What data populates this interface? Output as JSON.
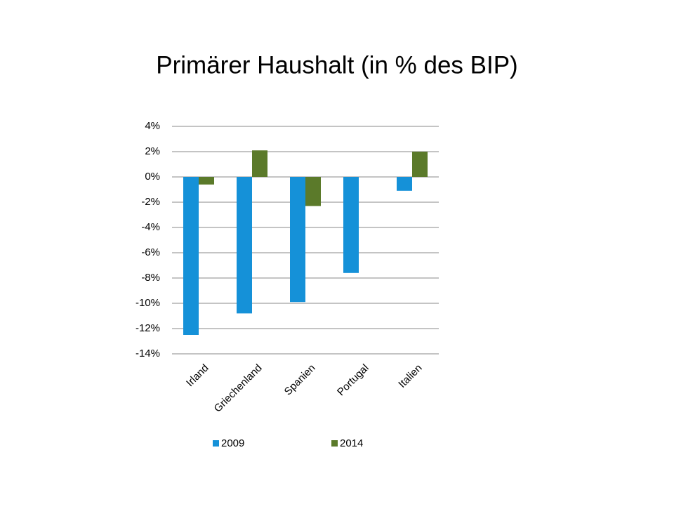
{
  "chart_data": {
    "type": "bar",
    "title": "Primärer Haushalt (in % des BIP)",
    "categories": [
      "Irland",
      "Griechenland",
      "Spanien",
      "Portugal",
      "Italien"
    ],
    "series": [
      {
        "name": "2009",
        "color": "#1591d8",
        "values": [
          -12.5,
          -10.8,
          -9.9,
          -7.6,
          -1.1
        ]
      },
      {
        "name": "2014",
        "color": "#5b7a2a",
        "values": [
          -0.6,
          2.1,
          -2.3,
          null,
          2.0
        ]
      }
    ],
    "ylim": [
      -14,
      4
    ],
    "yticks": [
      {
        "value": 4,
        "label": "4%"
      },
      {
        "value": 2,
        "label": "2%"
      },
      {
        "value": 0,
        "label": "0%"
      },
      {
        "value": -2,
        "label": "-2%"
      },
      {
        "value": -4,
        "label": "-4%"
      },
      {
        "value": -6,
        "label": "-6%"
      },
      {
        "value": -8,
        "label": "-8%"
      },
      {
        "value": -10,
        "label": "-10%"
      },
      {
        "value": -12,
        "label": "-12%"
      },
      {
        "value": -14,
        "label": "-14%"
      }
    ],
    "grid": true,
    "legend": "bottom"
  }
}
